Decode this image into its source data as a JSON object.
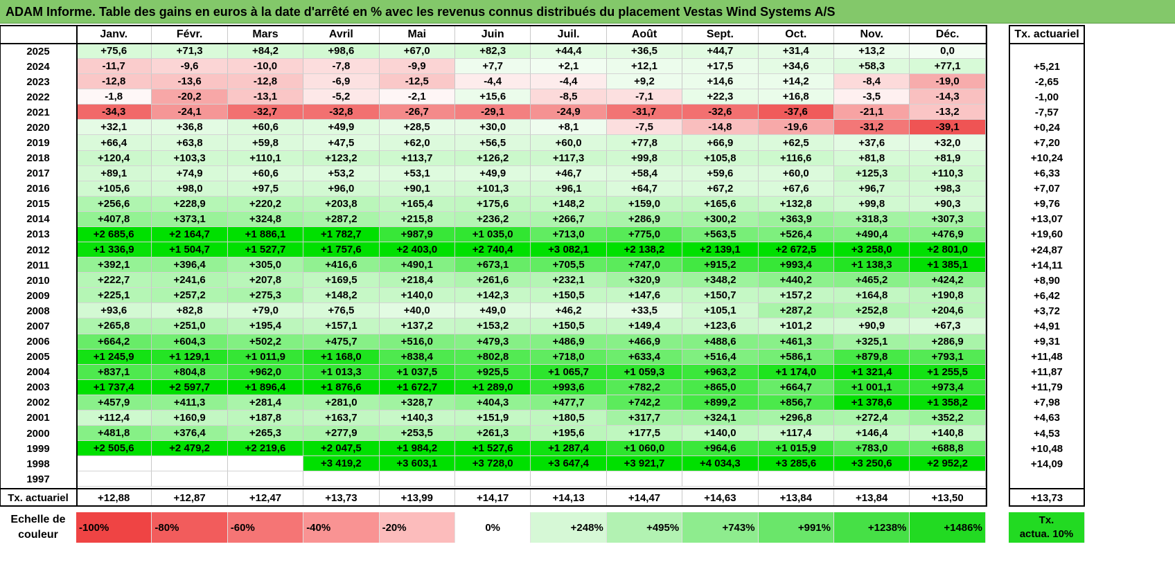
{
  "title": "ADAM Informe. Table des gains en euros à la date d'arrêté en % avec les revenus connus distribués du placement Vestas Wind Systems A/S",
  "months": [
    "Janv.",
    "Févr.",
    "Mars",
    "Avril",
    "Mai",
    "Juin",
    "Juil.",
    "Août",
    "Sept.",
    "Oct.",
    "Nov.",
    "Déc."
  ],
  "rate_header": "Tx. actuariel",
  "rows": [
    {
      "year": "2025",
      "values": [
        "+75,6",
        "+71,3",
        "+84,2",
        "+98,6",
        "+67,0",
        "+82,3",
        "+44,4",
        "+36,5",
        "+44,7",
        "+31,4",
        "+13,2",
        "0,0"
      ],
      "rate": ""
    },
    {
      "year": "2024",
      "values": [
        "-11,7",
        "-9,6",
        "-10,0",
        "-7,8",
        "-9,9",
        "+7,7",
        "+2,1",
        "+12,1",
        "+17,5",
        "+34,6",
        "+58,3",
        "+77,1"
      ],
      "rate": "+5,21"
    },
    {
      "year": "2023",
      "values": [
        "-12,8",
        "-13,6",
        "-12,8",
        "-6,9",
        "-12,5",
        "-4,4",
        "-4,4",
        "+9,2",
        "+14,6",
        "+14,2",
        "-8,4",
        "-19,0"
      ],
      "rate": "-2,65"
    },
    {
      "year": "2022",
      "values": [
        "-1,8",
        "-20,2",
        "-13,1",
        "-5,2",
        "-2,1",
        "+15,6",
        "-8,5",
        "-7,1",
        "+22,3",
        "+16,8",
        "-3,5",
        "-14,3"
      ],
      "rate": "-1,00"
    },
    {
      "year": "2021",
      "values": [
        "-34,3",
        "-24,1",
        "-32,7",
        "-32,8",
        "-26,7",
        "-29,1",
        "-24,9",
        "-31,7",
        "-32,6",
        "-37,6",
        "-21,1",
        "-13,2"
      ],
      "rate": "-7,57"
    },
    {
      "year": "2020",
      "values": [
        "+32,1",
        "+36,8",
        "+60,6",
        "+49,9",
        "+28,5",
        "+30,0",
        "+8,1",
        "-7,5",
        "-14,8",
        "-19,6",
        "-31,2",
        "-39,1"
      ],
      "rate": "+0,24"
    },
    {
      "year": "2019",
      "values": [
        "+66,4",
        "+63,8",
        "+59,8",
        "+47,5",
        "+62,0",
        "+56,5",
        "+60,0",
        "+77,8",
        "+66,9",
        "+62,5",
        "+37,6",
        "+32,0"
      ],
      "rate": "+7,20"
    },
    {
      "year": "2018",
      "values": [
        "+120,4",
        "+103,3",
        "+110,1",
        "+123,2",
        "+113,7",
        "+126,2",
        "+117,3",
        "+99,8",
        "+105,8",
        "+116,6",
        "+81,8",
        "+81,9"
      ],
      "rate": "+10,24"
    },
    {
      "year": "2017",
      "values": [
        "+89,1",
        "+74,9",
        "+60,6",
        "+53,2",
        "+53,1",
        "+49,9",
        "+46,7",
        "+58,4",
        "+59,6",
        "+60,0",
        "+125,3",
        "+110,3"
      ],
      "rate": "+6,33"
    },
    {
      "year": "2016",
      "values": [
        "+105,6",
        "+98,0",
        "+97,5",
        "+96,0",
        "+90,1",
        "+101,3",
        "+96,1",
        "+64,7",
        "+67,2",
        "+67,6",
        "+96,7",
        "+98,3"
      ],
      "rate": "+7,07"
    },
    {
      "year": "2015",
      "values": [
        "+256,6",
        "+228,9",
        "+220,2",
        "+203,8",
        "+165,4",
        "+175,6",
        "+148,2",
        "+159,0",
        "+165,6",
        "+132,8",
        "+99,8",
        "+90,3"
      ],
      "rate": "+9,76"
    },
    {
      "year": "2014",
      "values": [
        "+407,8",
        "+373,1",
        "+324,8",
        "+287,2",
        "+215,8",
        "+236,2",
        "+266,7",
        "+286,9",
        "+300,2",
        "+363,9",
        "+318,3",
        "+307,3"
      ],
      "rate": "+13,07"
    },
    {
      "year": "2013",
      "values": [
        "+2 685,6",
        "+2 164,7",
        "+1 886,1",
        "+1 782,7",
        "+987,9",
        "+1 035,0",
        "+713,0",
        "+775,0",
        "+563,5",
        "+526,4",
        "+490,4",
        "+476,9"
      ],
      "rate": "+19,60"
    },
    {
      "year": "2012",
      "values": [
        "+1 336,9",
        "+1 504,7",
        "+1 527,7",
        "+1 757,6",
        "+2 403,0",
        "+2 740,4",
        "+3 082,1",
        "+2 138,2",
        "+2 139,1",
        "+2 672,5",
        "+3 258,0",
        "+2 801,0"
      ],
      "rate": "+24,87"
    },
    {
      "year": "2011",
      "values": [
        "+392,1",
        "+396,4",
        "+305,0",
        "+416,6",
        "+490,1",
        "+673,1",
        "+705,5",
        "+747,0",
        "+915,2",
        "+993,4",
        "+1 138,3",
        "+1 385,1"
      ],
      "rate": "+14,11"
    },
    {
      "year": "2010",
      "values": [
        "+222,7",
        "+241,6",
        "+207,8",
        "+169,5",
        "+218,4",
        "+261,6",
        "+232,1",
        "+320,9",
        "+348,2",
        "+440,2",
        "+465,2",
        "+424,2"
      ],
      "rate": "+8,90"
    },
    {
      "year": "2009",
      "values": [
        "+225,1",
        "+257,2",
        "+275,3",
        "+148,2",
        "+140,0",
        "+142,3",
        "+150,5",
        "+147,6",
        "+150,7",
        "+157,2",
        "+164,8",
        "+190,8"
      ],
      "rate": "+6,42"
    },
    {
      "year": "2008",
      "values": [
        "+93,6",
        "+82,8",
        "+79,0",
        "+76,5",
        "+40,0",
        "+49,0",
        "+46,2",
        "+33,5",
        "+105,1",
        "+287,2",
        "+252,8",
        "+204,6"
      ],
      "rate": "+3,72"
    },
    {
      "year": "2007",
      "values": [
        "+265,8",
        "+251,0",
        "+195,4",
        "+157,1",
        "+137,2",
        "+153,2",
        "+150,5",
        "+149,4",
        "+123,6",
        "+101,2",
        "+90,9",
        "+67,3"
      ],
      "rate": "+4,91"
    },
    {
      "year": "2006",
      "values": [
        "+664,2",
        "+604,3",
        "+502,2",
        "+475,7",
        "+516,0",
        "+479,3",
        "+486,9",
        "+466,9",
        "+488,6",
        "+461,3",
        "+325,1",
        "+286,9"
      ],
      "rate": "+9,31"
    },
    {
      "year": "2005",
      "values": [
        "+1 245,9",
        "+1 129,1",
        "+1 011,9",
        "+1 168,0",
        "+838,4",
        "+802,8",
        "+718,0",
        "+633,4",
        "+516,4",
        "+586,1",
        "+879,8",
        "+793,1"
      ],
      "rate": "+11,48"
    },
    {
      "year": "2004",
      "values": [
        "+837,1",
        "+804,8",
        "+962,0",
        "+1 013,3",
        "+1 037,5",
        "+925,5",
        "+1 065,7",
        "+1 059,3",
        "+963,2",
        "+1 174,0",
        "+1 321,4",
        "+1 255,5"
      ],
      "rate": "+11,87"
    },
    {
      "year": "2003",
      "values": [
        "+1 737,4",
        "+2 597,7",
        "+1 896,4",
        "+1 876,6",
        "+1 672,7",
        "+1 289,0",
        "+993,6",
        "+782,2",
        "+865,0",
        "+664,7",
        "+1 001,1",
        "+973,4"
      ],
      "rate": "+11,79"
    },
    {
      "year": "2002",
      "values": [
        "+457,9",
        "+411,3",
        "+281,4",
        "+281,0",
        "+328,7",
        "+404,3",
        "+477,7",
        "+742,2",
        "+899,2",
        "+856,7",
        "+1 378,6",
        "+1 358,2"
      ],
      "rate": "+7,98"
    },
    {
      "year": "2001",
      "values": [
        "+112,4",
        "+160,9",
        "+187,8",
        "+163,7",
        "+140,3",
        "+151,9",
        "+180,5",
        "+317,7",
        "+324,1",
        "+296,8",
        "+272,4",
        "+352,2"
      ],
      "rate": "+4,63"
    },
    {
      "year": "2000",
      "values": [
        "+481,8",
        "+376,4",
        "+265,3",
        "+277,9",
        "+253,5",
        "+261,3",
        "+195,6",
        "+177,5",
        "+140,0",
        "+117,4",
        "+146,4",
        "+140,8"
      ],
      "rate": "+4,53"
    },
    {
      "year": "1999",
      "values": [
        "+2 505,6",
        "+2 479,2",
        "+2 219,6",
        "+2 047,5",
        "+1 984,2",
        "+1 527,6",
        "+1 287,4",
        "+1 060,0",
        "+964,6",
        "+1 015,9",
        "+783,0",
        "+688,8"
      ],
      "rate": "+10,48"
    },
    {
      "year": "1998",
      "values": [
        "",
        "",
        "",
        "+3 419,2",
        "+3 603,1",
        "+3 728,0",
        "+3 647,4",
        "+3 921,7",
        "+4 034,3",
        "+3 285,6",
        "+3 250,6",
        "+2 952,2"
      ],
      "rate": "+14,09"
    },
    {
      "year": "1997",
      "values": [
        "",
        "",
        "",
        "",
        "",
        "",
        "",
        "",
        "",
        "",
        "",
        ""
      ],
      "rate": ""
    }
  ],
  "footer": {
    "label": "Tx. actuariel",
    "values": [
      "+12,88",
      "+12,87",
      "+12,47",
      "+13,73",
      "+13,99",
      "+14,17",
      "+14,13",
      "+14,47",
      "+14,63",
      "+13,84",
      "+13,84",
      "+13,50"
    ],
    "rate": "+13,73"
  },
  "legend": {
    "label_line1": "Echelle de",
    "label_line2": "couleur",
    "items": [
      {
        "text": "-100%",
        "color": "#ef4444",
        "align": "left"
      },
      {
        "text": "-80%",
        "color": "#f25c5c",
        "align": "left"
      },
      {
        "text": "-60%",
        "color": "#f57575",
        "align": "left"
      },
      {
        "text": "-40%",
        "color": "#f99393",
        "align": "left"
      },
      {
        "text": "-20%",
        "color": "#fcbcbc",
        "align": "left"
      },
      {
        "text": "0%",
        "color": "#ffffff",
        "align": "center"
      },
      {
        "text": "+248%",
        "color": "#d6f8d6",
        "align": "right"
      },
      {
        "text": "+495%",
        "color": "#b2f2b2",
        "align": "right"
      },
      {
        "text": "+743%",
        "color": "#8eec8e",
        "align": "right"
      },
      {
        "text": "+991%",
        "color": "#6ae66a",
        "align": "right"
      },
      {
        "text": "+1238%",
        "color": "#46e046",
        "align": "right"
      },
      {
        "text": "+1486%",
        "color": "#22da22",
        "align": "right"
      }
    ],
    "rate_line1": "Tx.",
    "rate_line2": "actua. 10%",
    "rate_color": "#22da22"
  },
  "colors": {
    "title_bg": "#83c86a",
    "neg_max": "#ef4444",
    "pos_max": "#22da22"
  }
}
